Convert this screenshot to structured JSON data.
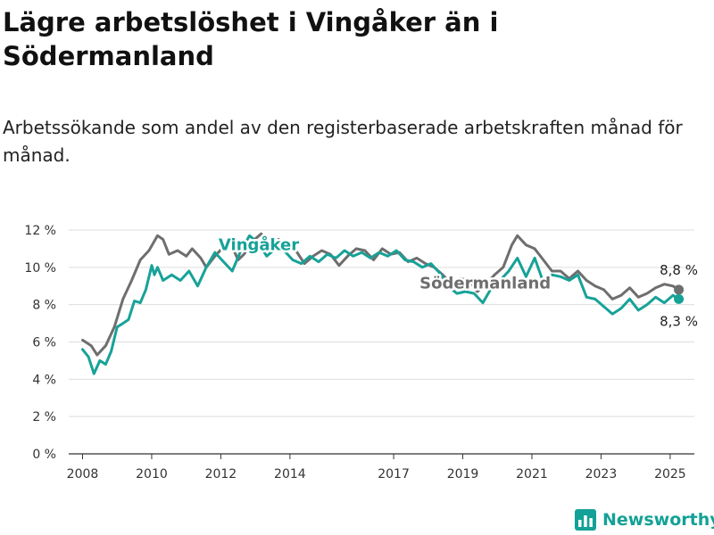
{
  "page": {
    "title": "Lägre arbetslöshet i Vingåker än i Södermanland",
    "subtitle": "Arbetssökande som andel av den registerbaserade arbetskraften månad för månad.",
    "logo_text": "Newsworthy"
  },
  "chart_data": {
    "type": "line",
    "ylim": [
      0,
      12
    ],
    "xlim": [
      2007.6,
      2025.7
    ],
    "grid": true,
    "y_ticks": [
      0,
      2,
      4,
      6,
      8,
      10,
      12
    ],
    "y_tick_labels": [
      "0 %",
      "2 %",
      "4 %",
      "6 %",
      "8 %",
      "10 %",
      "12 %"
    ],
    "x_ticks": [
      2008,
      2010,
      2012,
      2014,
      2017,
      2019,
      2021,
      2023,
      2025
    ],
    "x_tick_labels": [
      "2008",
      "2010",
      "2012",
      "2014",
      "2017",
      "2019",
      "2021",
      "2023",
      "2025"
    ],
    "series": [
      {
        "name": "Södermanland",
        "color": "#6e6e6e",
        "end_label": "8,8 %",
        "points": [
          [
            2008.0,
            6.1
          ],
          [
            2008.25,
            5.8
          ],
          [
            2008.42,
            5.3
          ],
          [
            2008.67,
            5.8
          ],
          [
            2008.92,
            6.8
          ],
          [
            2009.17,
            8.3
          ],
          [
            2009.42,
            9.3
          ],
          [
            2009.67,
            10.4
          ],
          [
            2009.92,
            10.9
          ],
          [
            2010.17,
            11.7
          ],
          [
            2010.33,
            11.5
          ],
          [
            2010.5,
            10.7
          ],
          [
            2010.75,
            10.9
          ],
          [
            2011.0,
            10.6
          ],
          [
            2011.17,
            11.0
          ],
          [
            2011.42,
            10.5
          ],
          [
            2011.58,
            10.0
          ],
          [
            2011.83,
            10.6
          ],
          [
            2012.08,
            11.1
          ],
          [
            2012.33,
            11.1
          ],
          [
            2012.5,
            10.4
          ],
          [
            2012.67,
            10.7
          ],
          [
            2012.92,
            11.4
          ],
          [
            2013.17,
            11.8
          ],
          [
            2013.42,
            11.2
          ],
          [
            2013.67,
            11.5
          ],
          [
            2013.92,
            11.0
          ],
          [
            2014.17,
            10.9
          ],
          [
            2014.42,
            10.2
          ],
          [
            2014.67,
            10.6
          ],
          [
            2014.92,
            10.9
          ],
          [
            2015.17,
            10.7
          ],
          [
            2015.42,
            10.1
          ],
          [
            2015.67,
            10.6
          ],
          [
            2015.92,
            11.0
          ],
          [
            2016.17,
            10.9
          ],
          [
            2016.42,
            10.4
          ],
          [
            2016.67,
            11.0
          ],
          [
            2016.92,
            10.7
          ],
          [
            2017.17,
            10.8
          ],
          [
            2017.42,
            10.3
          ],
          [
            2017.67,
            10.5
          ],
          [
            2017.92,
            10.2
          ],
          [
            2018.17,
            10.0
          ],
          [
            2018.42,
            9.6
          ],
          [
            2018.67,
            9.1
          ],
          [
            2018.92,
            9.4
          ],
          [
            2019.17,
            9.3
          ],
          [
            2019.42,
            8.7
          ],
          [
            2019.67,
            9.1
          ],
          [
            2019.92,
            9.6
          ],
          [
            2020.17,
            10.0
          ],
          [
            2020.42,
            11.2
          ],
          [
            2020.58,
            11.7
          ],
          [
            2020.83,
            11.2
          ],
          [
            2021.08,
            11.0
          ],
          [
            2021.33,
            10.4
          ],
          [
            2021.58,
            9.8
          ],
          [
            2021.83,
            9.8
          ],
          [
            2022.08,
            9.4
          ],
          [
            2022.33,
            9.8
          ],
          [
            2022.58,
            9.3
          ],
          [
            2022.83,
            9.0
          ],
          [
            2023.08,
            8.8
          ],
          [
            2023.33,
            8.3
          ],
          [
            2023.58,
            8.5
          ],
          [
            2023.83,
            8.9
          ],
          [
            2024.08,
            8.4
          ],
          [
            2024.33,
            8.6
          ],
          [
            2024.58,
            8.9
          ],
          [
            2024.83,
            9.1
          ],
          [
            2025.08,
            9.0
          ],
          [
            2025.25,
            8.8
          ]
        ]
      },
      {
        "name": "Vingåker",
        "color": "#17a298",
        "end_label": "8,3 %",
        "points": [
          [
            2008.0,
            5.6
          ],
          [
            2008.17,
            5.2
          ],
          [
            2008.33,
            4.3
          ],
          [
            2008.5,
            5.0
          ],
          [
            2008.67,
            4.8
          ],
          [
            2008.83,
            5.5
          ],
          [
            2009.0,
            6.8
          ],
          [
            2009.17,
            7.0
          ],
          [
            2009.33,
            7.2
          ],
          [
            2009.5,
            8.2
          ],
          [
            2009.67,
            8.1
          ],
          [
            2009.83,
            8.8
          ],
          [
            2010.0,
            10.1
          ],
          [
            2010.08,
            9.6
          ],
          [
            2010.17,
            10.0
          ],
          [
            2010.33,
            9.3
          ],
          [
            2010.58,
            9.6
          ],
          [
            2010.83,
            9.3
          ],
          [
            2011.08,
            9.8
          ],
          [
            2011.33,
            9.0
          ],
          [
            2011.58,
            10.0
          ],
          [
            2011.83,
            10.8
          ],
          [
            2012.08,
            10.3
          ],
          [
            2012.33,
            9.8
          ],
          [
            2012.58,
            10.9
          ],
          [
            2012.83,
            11.7
          ],
          [
            2013.08,
            11.3
          ],
          [
            2013.33,
            10.6
          ],
          [
            2013.58,
            11.0
          ],
          [
            2013.83,
            10.9
          ],
          [
            2014.08,
            10.4
          ],
          [
            2014.33,
            10.2
          ],
          [
            2014.58,
            10.6
          ],
          [
            2014.83,
            10.3
          ],
          [
            2015.08,
            10.7
          ],
          [
            2015.33,
            10.5
          ],
          [
            2015.58,
            10.9
          ],
          [
            2015.83,
            10.6
          ],
          [
            2016.08,
            10.8
          ],
          [
            2016.33,
            10.5
          ],
          [
            2016.58,
            10.8
          ],
          [
            2016.83,
            10.6
          ],
          [
            2017.08,
            10.9
          ],
          [
            2017.33,
            10.4
          ],
          [
            2017.58,
            10.3
          ],
          [
            2017.83,
            10.0
          ],
          [
            2018.08,
            10.2
          ],
          [
            2018.33,
            9.7
          ],
          [
            2018.58,
            9.0
          ],
          [
            2018.83,
            8.6
          ],
          [
            2019.08,
            8.7
          ],
          [
            2019.33,
            8.6
          ],
          [
            2019.58,
            8.1
          ],
          [
            2019.83,
            8.9
          ],
          [
            2020.08,
            9.3
          ],
          [
            2020.33,
            9.8
          ],
          [
            2020.58,
            10.5
          ],
          [
            2020.83,
            9.5
          ],
          [
            2021.08,
            10.5
          ],
          [
            2021.33,
            9.2
          ],
          [
            2021.58,
            9.6
          ],
          [
            2021.83,
            9.5
          ],
          [
            2022.08,
            9.3
          ],
          [
            2022.33,
            9.6
          ],
          [
            2022.58,
            8.4
          ],
          [
            2022.83,
            8.3
          ],
          [
            2023.08,
            7.9
          ],
          [
            2023.33,
            7.5
          ],
          [
            2023.58,
            7.8
          ],
          [
            2023.83,
            8.3
          ],
          [
            2024.08,
            7.7
          ],
          [
            2024.33,
            8.0
          ],
          [
            2024.58,
            8.4
          ],
          [
            2024.83,
            8.1
          ],
          [
            2025.08,
            8.5
          ],
          [
            2025.25,
            8.3
          ]
        ]
      }
    ]
  }
}
